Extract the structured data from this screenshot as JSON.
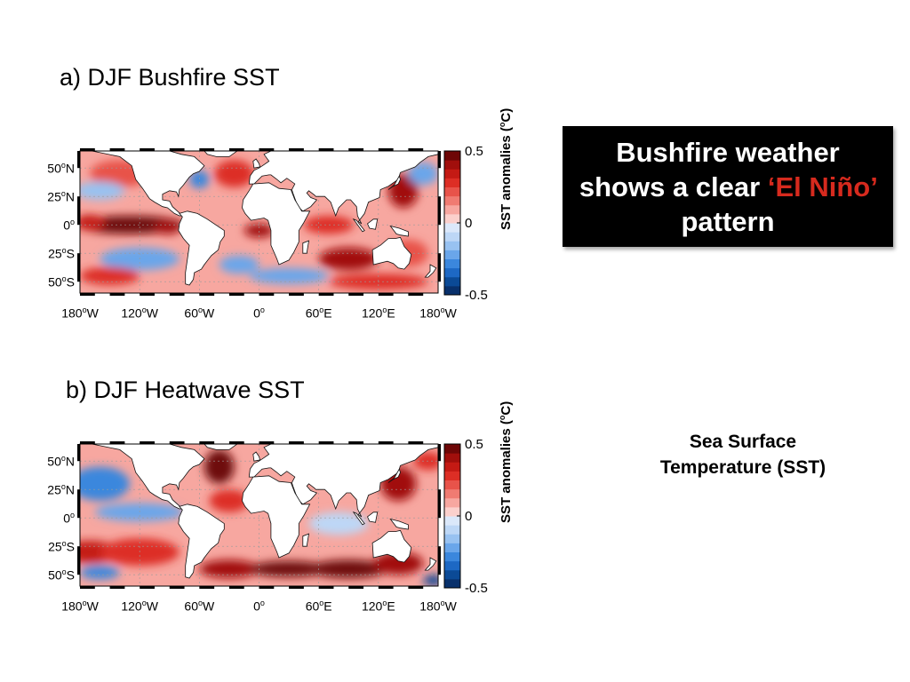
{
  "chart_data": [
    {
      "type": "heatmap",
      "id": "a",
      "title": "a) DJF Bushfire SST",
      "xlabel": "",
      "ylabel": "",
      "x_ticks": [
        "180",
        "120",
        "60",
        "0",
        "60",
        "120",
        "180"
      ],
      "x_hemi": [
        "W",
        "W",
        "W",
        "",
        "E",
        "E",
        "W"
      ],
      "x_values": [
        -180,
        -120,
        -60,
        0,
        60,
        120,
        180
      ],
      "y_ticks": [
        "50",
        "25",
        "0",
        "25",
        "50"
      ],
      "y_hemi": [
        "N",
        "N",
        "",
        "S",
        "S"
      ],
      "y_values": [
        50,
        25,
        0,
        -25,
        -50
      ],
      "xlim": [
        -180,
        180
      ],
      "ylim": [
        -60,
        65
      ],
      "grid": true,
      "colorbar": {
        "label_main": "SST anomalies (",
        "label_deg": "o",
        "label_end": "C)",
        "ticks": [
          "0.5",
          "0",
          "-0.5"
        ],
        "tick_values": [
          0.5,
          0,
          -0.5
        ],
        "range": [
          -0.5,
          0.5
        ],
        "levels": 16,
        "colors": [
          "#08306b",
          "#0b4a96",
          "#1d68c4",
          "#3b87dd",
          "#6aa6ea",
          "#98c2f1",
          "#bdd7f6",
          "#dbe8fa",
          "#fbd0cc",
          "#f7a7a0",
          "#f07b72",
          "#e8534a",
          "#dd2e25",
          "#c41a14",
          "#a10f0c",
          "#6e0707"
        ]
      },
      "anomaly_features": [
        {
          "lon": -130,
          "lat": 0,
          "rx": 55,
          "ry": 8,
          "value": 0.45
        },
        {
          "lon": -92,
          "lat": -2,
          "rx": 14,
          "ry": 6,
          "value": 0.4
        },
        {
          "lon": -170,
          "lat": 2,
          "rx": 15,
          "ry": 7,
          "value": 0.35
        },
        {
          "lon": -140,
          "lat": 45,
          "rx": 30,
          "ry": 12,
          "value": 0.2
        },
        {
          "lon": -160,
          "lat": 30,
          "rx": 25,
          "ry": 8,
          "value": -0.15
        },
        {
          "lon": -120,
          "lat": -30,
          "rx": 40,
          "ry": 10,
          "value": -0.2
        },
        {
          "lon": -150,
          "lat": -45,
          "rx": 30,
          "ry": 8,
          "value": 0.3
        },
        {
          "lon": -25,
          "lat": 45,
          "rx": 20,
          "ry": 12,
          "value": 0.3
        },
        {
          "lon": -60,
          "lat": 40,
          "rx": 10,
          "ry": 8,
          "value": -0.3
        },
        {
          "lon": -20,
          "lat": -35,
          "rx": 20,
          "ry": 8,
          "value": -0.25
        },
        {
          "lon": 0,
          "lat": -5,
          "rx": 15,
          "ry": 6,
          "value": 0.4
        },
        {
          "lon": 90,
          "lat": -30,
          "rx": 30,
          "ry": 10,
          "value": 0.4
        },
        {
          "lon": 70,
          "lat": 0,
          "rx": 25,
          "ry": 8,
          "value": 0.3
        },
        {
          "lon": 145,
          "lat": 30,
          "rx": 15,
          "ry": 15,
          "value": 0.4
        },
        {
          "lon": 165,
          "lat": 45,
          "rx": 15,
          "ry": 10,
          "value": -0.2
        },
        {
          "lon": 150,
          "lat": -25,
          "rx": 20,
          "ry": 12,
          "value": 0.2
        },
        {
          "lon": 30,
          "lat": -45,
          "rx": 40,
          "ry": 7,
          "value": -0.25
        },
        {
          "lon": 120,
          "lat": -50,
          "rx": 50,
          "ry": 7,
          "value": 0.25
        }
      ]
    },
    {
      "type": "heatmap",
      "id": "b",
      "title": "b) DJF Heatwave SST",
      "xlabel": "",
      "ylabel": "",
      "x_ticks": [
        "180",
        "120",
        "60",
        "0",
        "60",
        "120",
        "180"
      ],
      "x_hemi": [
        "W",
        "W",
        "W",
        "",
        "E",
        "E",
        "W"
      ],
      "x_values": [
        -180,
        -120,
        -60,
        0,
        60,
        120,
        180
      ],
      "y_ticks": [
        "50",
        "25",
        "0",
        "25",
        "50"
      ],
      "y_hemi": [
        "N",
        "N",
        "",
        "S",
        "S"
      ],
      "y_values": [
        50,
        25,
        0,
        -25,
        -50
      ],
      "xlim": [
        -180,
        180
      ],
      "ylim": [
        -60,
        65
      ],
      "grid": true,
      "colorbar": {
        "label_main": "SST anomalies (",
        "label_deg": "o",
        "label_end": "C)",
        "ticks": [
          "0.5",
          "0",
          "-0.5"
        ],
        "tick_values": [
          0.5,
          0,
          -0.5
        ],
        "range": [
          -0.5,
          0.5
        ],
        "levels": 16,
        "colors": [
          "#08306b",
          "#0b4a96",
          "#1d68c4",
          "#3b87dd",
          "#6aa6ea",
          "#98c2f1",
          "#bdd7f6",
          "#dbe8fa",
          "#fbd0cc",
          "#f7a7a0",
          "#f07b72",
          "#e8534a",
          "#dd2e25",
          "#c41a14",
          "#a10f0c",
          "#6e0707"
        ]
      },
      "anomaly_features": [
        {
          "lon": -160,
          "lat": 30,
          "rx": 30,
          "ry": 15,
          "value": -0.3
        },
        {
          "lon": -120,
          "lat": 5,
          "rx": 45,
          "ry": 8,
          "value": -0.25
        },
        {
          "lon": -170,
          "lat": -30,
          "rx": 30,
          "ry": 10,
          "value": 0.35
        },
        {
          "lon": -120,
          "lat": -30,
          "rx": 40,
          "ry": 12,
          "value": 0.3
        },
        {
          "lon": -160,
          "lat": -48,
          "rx": 20,
          "ry": 6,
          "value": -0.3
        },
        {
          "lon": -40,
          "lat": 45,
          "rx": 15,
          "ry": 15,
          "value": 0.45
        },
        {
          "lon": -30,
          "lat": 15,
          "rx": 20,
          "ry": 10,
          "value": 0.25
        },
        {
          "lon": -30,
          "lat": -45,
          "rx": 30,
          "ry": 8,
          "value": 0.4
        },
        {
          "lon": 30,
          "lat": -45,
          "rx": 40,
          "ry": 7,
          "value": 0.5
        },
        {
          "lon": 90,
          "lat": -45,
          "rx": 40,
          "ry": 8,
          "value": 0.45
        },
        {
          "lon": 140,
          "lat": -40,
          "rx": 25,
          "ry": 10,
          "value": 0.4
        },
        {
          "lon": 140,
          "lat": 30,
          "rx": 18,
          "ry": 15,
          "value": 0.4
        },
        {
          "lon": 170,
          "lat": 50,
          "rx": 15,
          "ry": 8,
          "value": 0.3
        },
        {
          "lon": 80,
          "lat": -5,
          "rx": 30,
          "ry": 10,
          "value": -0.1
        },
        {
          "lon": 175,
          "lat": -55,
          "rx": 10,
          "ry": 5,
          "value": -0.4
        }
      ]
    }
  ],
  "callout": {
    "part1": "Bushfire weather shows a clear ",
    "highlight": "‘El Niño’",
    "part2": " pattern"
  },
  "note": {
    "line1": "Sea Surface",
    "line2": "Temperature (SST)"
  }
}
